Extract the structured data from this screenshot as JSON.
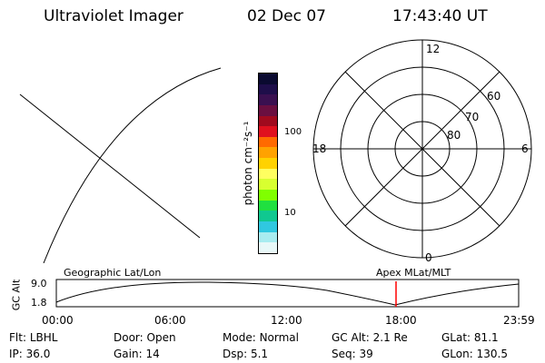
{
  "header": {
    "instrument": "Ultraviolet Imager",
    "date": "02 Dec 07",
    "time": "17:43:40 UT"
  },
  "colorbar": {
    "unit_label": "photon cm⁻²s⁻¹",
    "ticks": [
      "100",
      "10"
    ],
    "colors": [
      "#0a0a30",
      "#1e0e4a",
      "#3a1050",
      "#6a0f40",
      "#a00a1e",
      "#e0101e",
      "#ff6a00",
      "#ffa200",
      "#ffd200",
      "#ffff60",
      "#d8ff30",
      "#80ff00",
      "#20e040",
      "#10c890",
      "#30c8e0",
      "#a8ecf0",
      "#e8f8f8"
    ]
  },
  "polar": {
    "mlt_labels": {
      "top": "12",
      "left": "18",
      "right": "6",
      "bottom": "0"
    },
    "lat_labels": [
      "60",
      "70",
      "80"
    ]
  },
  "timeline": {
    "ylabel": "GC Alt",
    "y_ticks": [
      "9.0",
      "1.8"
    ],
    "left_caption": "Geographic Lat/Lon",
    "right_caption": "Apex MLat/MLT",
    "x_ticks": [
      "00:00",
      "06:00",
      "12:00",
      "18:00",
      "23:59"
    ]
  },
  "footer": {
    "row1": [
      {
        "label": "Flt:",
        "value": "LBHL"
      },
      {
        "label": "Door:",
        "value": "Open"
      },
      {
        "label": "Mode:",
        "value": "Normal"
      },
      {
        "label": "GC Alt:",
        "value": "2.1 Re"
      },
      {
        "label": "GLat:",
        "value": "81.1"
      }
    ],
    "row2": [
      {
        "label": "IP:",
        "value": "36.0"
      },
      {
        "label": "Gain:",
        "value": "14"
      },
      {
        "label": "Dsp:",
        "value": "5.1"
      },
      {
        "label": "Seq:",
        "value": "39"
      },
      {
        "label": "GLon:",
        "value": "130.5"
      }
    ]
  }
}
